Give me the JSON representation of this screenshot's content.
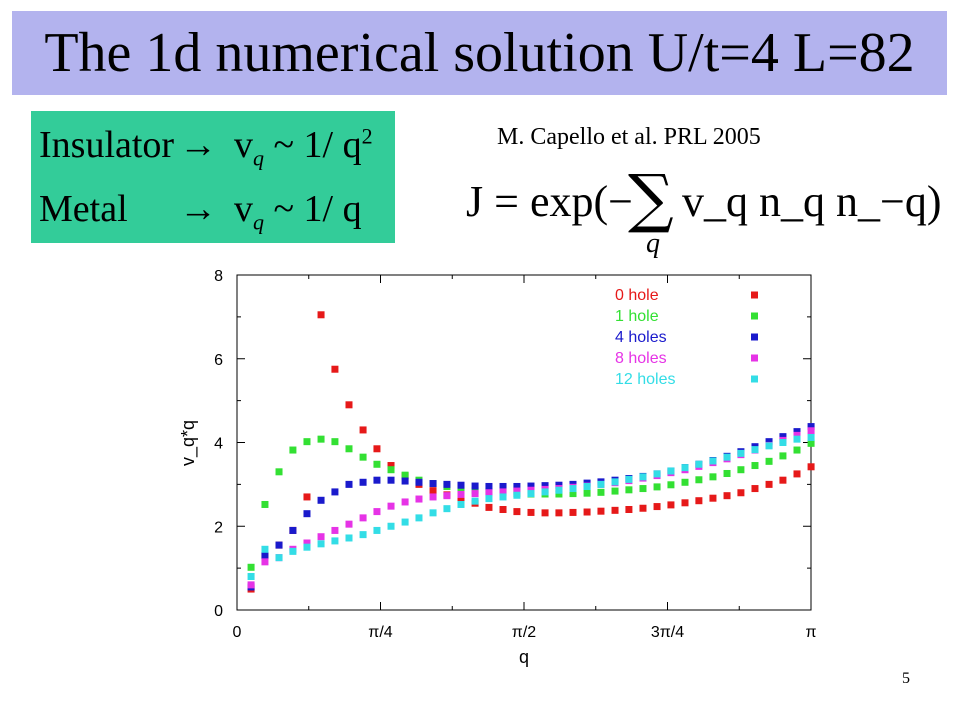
{
  "slide": {
    "title": "The 1d numerical solution U/t=4 L=82",
    "page_number": "5",
    "laws": {
      "insulator_label": "Insulator",
      "insulator_relation": "v",
      "insulator_rhs": "~ 1/ q",
      "metal_label": "Metal",
      "metal_relation": "v",
      "metal_rhs": "~ 1/ q",
      "arrow": "→",
      "subscript": "q",
      "square": "2"
    },
    "citation": "M. Capello et al. PRL 2005",
    "jastrow": {
      "lhs": "J = exp(−",
      "sum_symbol": "∑",
      "sum_index": "q",
      "rhs": "v_q n_q n_−q)"
    },
    "colors": {
      "title_bg": "#b3b3ee",
      "box_bg": "#33cc99"
    }
  },
  "chart_data": {
    "type": "scatter",
    "xlabel": "q",
    "ylabel": "v_q*q",
    "x_ticks": [
      "0",
      "π/4",
      "π/2",
      "3π/4",
      "π"
    ],
    "x_tick_values": [
      0,
      0.7854,
      1.5708,
      2.3562,
      3.1416
    ],
    "y_ticks": [
      "0",
      "2",
      "4",
      "6",
      "8"
    ],
    "y_tick_values": [
      0,
      2,
      4,
      6,
      8
    ],
    "xlim": [
      0,
      3.1416
    ],
    "ylim": [
      0,
      8
    ],
    "legend_position": "top-right",
    "grid": false,
    "series": [
      {
        "name": "0 hole",
        "color": "#e61919",
        "x": [
          0.077,
          0.153,
          0.23,
          0.306,
          0.383,
          0.46,
          0.536,
          0.613,
          0.69,
          0.766,
          0.843,
          0.92,
          0.996,
          1.073,
          1.149,
          1.226,
          1.303,
          1.379,
          1.456,
          1.532,
          1.609,
          1.686,
          1.762,
          1.839,
          1.916,
          1.992,
          2.069,
          2.145,
          2.222,
          2.299,
          2.375,
          2.452,
          2.528,
          2.605,
          2.682,
          2.758,
          2.835,
          2.912,
          2.988,
          3.065,
          3.142
        ],
        "y": [
          0.5,
          1.3,
          1.55,
          1.9,
          2.7,
          7.05,
          5.75,
          4.9,
          4.3,
          3.85,
          3.45,
          3.2,
          3.0,
          2.85,
          2.75,
          2.65,
          2.55,
          2.45,
          2.4,
          2.35,
          2.33,
          2.32,
          2.32,
          2.33,
          2.34,
          2.36,
          2.38,
          2.4,
          2.43,
          2.47,
          2.51,
          2.56,
          2.61,
          2.67,
          2.73,
          2.8,
          2.9,
          3.0,
          3.1,
          3.25,
          3.42
        ]
      },
      {
        "name": "1 hole",
        "color": "#33e033",
        "x": [
          0.077,
          0.153,
          0.23,
          0.306,
          0.383,
          0.46,
          0.536,
          0.613,
          0.69,
          0.766,
          0.843,
          0.92,
          0.996,
          1.073,
          1.149,
          1.226,
          1.303,
          1.379,
          1.456,
          1.532,
          1.609,
          1.686,
          1.762,
          1.839,
          1.916,
          1.992,
          2.069,
          2.145,
          2.222,
          2.299,
          2.375,
          2.452,
          2.528,
          2.605,
          2.682,
          2.758,
          2.835,
          2.912,
          2.988,
          3.065,
          3.142
        ],
        "y": [
          1.02,
          2.52,
          3.3,
          3.82,
          4.02,
          4.08,
          4.02,
          3.85,
          3.65,
          3.48,
          3.35,
          3.22,
          3.1,
          3.02,
          2.95,
          2.9,
          2.86,
          2.83,
          2.8,
          2.78,
          2.77,
          2.77,
          2.77,
          2.78,
          2.79,
          2.81,
          2.84,
          2.87,
          2.9,
          2.94,
          2.99,
          3.05,
          3.11,
          3.18,
          3.26,
          3.35,
          3.45,
          3.55,
          3.68,
          3.82,
          3.98
        ]
      },
      {
        "name": "4 holes",
        "color": "#1a1acc",
        "x": [
          0.077,
          0.153,
          0.23,
          0.306,
          0.383,
          0.46,
          0.536,
          0.613,
          0.69,
          0.766,
          0.843,
          0.92,
          0.996,
          1.073,
          1.149,
          1.226,
          1.303,
          1.379,
          1.456,
          1.532,
          1.609,
          1.686,
          1.762,
          1.839,
          1.916,
          1.992,
          2.069,
          2.145,
          2.222,
          2.299,
          2.375,
          2.452,
          2.528,
          2.605,
          2.682,
          2.758,
          2.835,
          2.912,
          2.988,
          3.065,
          3.142
        ],
        "y": [
          0.55,
          1.3,
          1.55,
          1.9,
          2.3,
          2.62,
          2.82,
          3.0,
          3.05,
          3.1,
          3.1,
          3.08,
          3.05,
          3.02,
          3.0,
          2.98,
          2.96,
          2.95,
          2.95,
          2.95,
          2.96,
          2.97,
          2.98,
          3.0,
          3.03,
          3.06,
          3.1,
          3.14,
          3.19,
          3.25,
          3.32,
          3.4,
          3.48,
          3.57,
          3.67,
          3.78,
          3.9,
          4.02,
          4.14,
          4.26,
          4.38
        ]
      },
      {
        "name": "8 holes",
        "color": "#e633e6",
        "x": [
          0.077,
          0.153,
          0.23,
          0.306,
          0.383,
          0.46,
          0.536,
          0.613,
          0.69,
          0.766,
          0.843,
          0.92,
          0.996,
          1.073,
          1.149,
          1.226,
          1.303,
          1.379,
          1.456,
          1.532,
          1.609,
          1.686,
          1.762,
          1.839,
          1.916,
          1.992,
          2.069,
          2.145,
          2.222,
          2.299,
          2.375,
          2.452,
          2.528,
          2.605,
          2.682,
          2.758,
          2.835,
          2.912,
          2.988,
          3.065,
          3.142
        ],
        "y": [
          0.6,
          1.15,
          1.25,
          1.45,
          1.6,
          1.75,
          1.9,
          2.05,
          2.2,
          2.35,
          2.48,
          2.58,
          2.65,
          2.7,
          2.73,
          2.76,
          2.78,
          2.8,
          2.82,
          2.84,
          2.86,
          2.88,
          2.9,
          2.93,
          2.96,
          3.0,
          3.04,
          3.09,
          3.15,
          3.21,
          3.28,
          3.35,
          3.43,
          3.52,
          3.61,
          3.71,
          3.82,
          3.93,
          4.05,
          4.17,
          4.28
        ]
      },
      {
        "name": "12 holes",
        "color": "#33dde6",
        "x": [
          0.077,
          0.153,
          0.23,
          0.306,
          0.383,
          0.46,
          0.536,
          0.613,
          0.69,
          0.766,
          0.843,
          0.92,
          0.996,
          1.073,
          1.149,
          1.226,
          1.303,
          1.379,
          1.456,
          1.532,
          1.609,
          1.686,
          1.762,
          1.839,
          1.916,
          1.992,
          2.069,
          2.145,
          2.222,
          2.299,
          2.375,
          2.452,
          2.528,
          2.605,
          2.682,
          2.758,
          2.835,
          2.912,
          2.988,
          3.065,
          3.142
        ],
        "y": [
          0.8,
          1.45,
          1.25,
          1.4,
          1.5,
          1.58,
          1.65,
          1.72,
          1.8,
          1.9,
          2.0,
          2.1,
          2.2,
          2.32,
          2.42,
          2.52,
          2.6,
          2.66,
          2.7,
          2.74,
          2.78,
          2.82,
          2.86,
          2.9,
          2.95,
          3.0,
          3.06,
          3.12,
          3.18,
          3.25,
          3.32,
          3.4,
          3.48,
          3.56,
          3.65,
          3.74,
          3.83,
          3.92,
          4.0,
          4.08,
          4.12
        ]
      }
    ]
  }
}
